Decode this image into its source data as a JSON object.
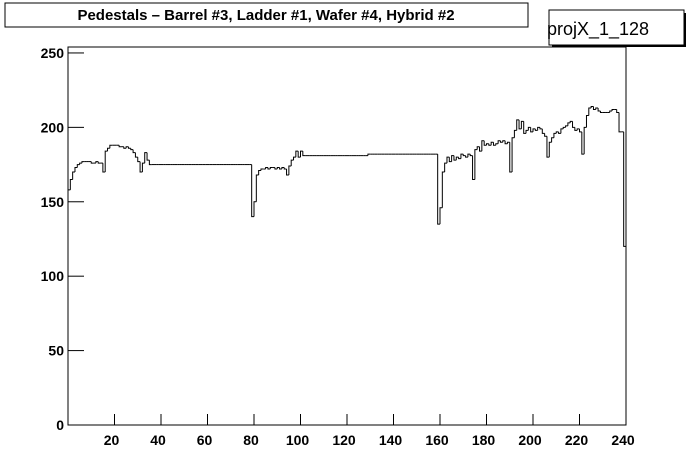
{
  "chart_data": {
    "type": "histogram",
    "title": "Pedestals – Barrel #3, Ladder #1, Wafer #4, Hybrid #2",
    "stats_title": "projX_1_128",
    "color": "#000000",
    "xlim": [
      0,
      240
    ],
    "ylim": [
      0,
      254
    ],
    "xticks": [
      20,
      40,
      60,
      80,
      100,
      120,
      140,
      160,
      180,
      200,
      220,
      240
    ],
    "yticks": [
      0,
      50,
      100,
      150,
      200,
      250
    ],
    "bins": [
      0,
      1,
      2,
      3,
      4,
      5,
      6,
      7,
      8,
      9,
      10,
      11,
      12,
      13,
      14,
      15,
      16,
      17,
      18,
      19,
      20,
      21,
      22,
      23,
      24,
      25,
      26,
      27,
      28,
      29,
      30,
      31,
      32,
      33,
      34,
      35,
      36,
      37,
      38,
      39,
      40,
      41,
      42,
      43,
      44,
      45,
      46,
      47,
      48,
      49,
      50,
      51,
      52,
      53,
      54,
      55,
      56,
      57,
      58,
      59,
      60,
      61,
      62,
      63,
      64,
      65,
      66,
      67,
      68,
      69,
      70,
      71,
      72,
      73,
      74,
      75,
      76,
      77,
      78,
      79,
      80,
      81,
      82,
      83,
      84,
      85,
      86,
      87,
      88,
      89,
      90,
      91,
      92,
      93,
      94,
      95,
      96,
      97,
      98,
      99,
      100,
      101,
      102,
      103,
      104,
      105,
      106,
      107,
      108,
      109,
      110,
      111,
      112,
      113,
      114,
      115,
      116,
      117,
      118,
      119,
      120,
      121,
      122,
      123,
      124,
      125,
      126,
      127,
      128,
      129,
      130,
      131,
      132,
      133,
      134,
      135,
      136,
      137,
      138,
      139,
      140,
      141,
      142,
      143,
      144,
      145,
      146,
      147,
      148,
      149,
      150,
      151,
      152,
      153,
      154,
      155,
      156,
      157,
      158,
      159,
      160,
      161,
      162,
      163,
      164,
      165,
      166,
      167,
      168,
      169,
      170,
      171,
      172,
      173,
      174,
      175,
      176,
      177,
      178,
      179,
      180,
      181,
      182,
      183,
      184,
      185,
      186,
      187,
      188,
      189,
      190,
      191,
      192,
      193,
      194,
      195,
      196,
      197,
      198,
      199,
      200,
      201,
      202,
      203,
      204,
      205,
      206,
      207,
      208,
      209,
      210,
      211,
      212,
      213,
      214,
      215,
      216,
      217,
      218,
      219,
      220,
      221,
      222,
      223,
      224,
      225,
      226,
      227,
      228,
      229,
      230,
      231,
      232,
      233,
      234,
      235,
      236,
      237,
      238,
      239,
      240
    ],
    "values": [
      158,
      165,
      170,
      173,
      175,
      176,
      177,
      177,
      177,
      177,
      176,
      176,
      177,
      176,
      176,
      170,
      184,
      186,
      188,
      188,
      188,
      188,
      187,
      187,
      186,
      187,
      186,
      185,
      183,
      180,
      177,
      170,
      176,
      183,
      178,
      175,
      175,
      175,
      175,
      175,
      175,
      175,
      175,
      175,
      175,
      175,
      175,
      175,
      175,
      175,
      175,
      175,
      175,
      175,
      175,
      175,
      175,
      175,
      175,
      175,
      175,
      175,
      175,
      175,
      175,
      175,
      175,
      175,
      175,
      175,
      175,
      175,
      175,
      175,
      175,
      175,
      175,
      175,
      175,
      140,
      150,
      168,
      171,
      172,
      172,
      173,
      172,
      173,
      173,
      172,
      173,
      172,
      173,
      172,
      168,
      174,
      178,
      180,
      184,
      180,
      184,
      181,
      181,
      181,
      181,
      181,
      181,
      181,
      181,
      181,
      181,
      181,
      181,
      181,
      181,
      181,
      181,
      181,
      181,
      181,
      181,
      181,
      181,
      181,
      181,
      181,
      181,
      181,
      181,
      182,
      182,
      182,
      182,
      182,
      182,
      182,
      182,
      182,
      182,
      182,
      182,
      182,
      182,
      182,
      182,
      182,
      182,
      182,
      182,
      182,
      182,
      182,
      182,
      182,
      182,
      182,
      182,
      182,
      182,
      135,
      146,
      170,
      176,
      180,
      177,
      181,
      178,
      180,
      179,
      182,
      181,
      180,
      182,
      181,
      165,
      185,
      187,
      184,
      191,
      188,
      189,
      188,
      190,
      188,
      189,
      191,
      190,
      191,
      189,
      190,
      170,
      193,
      198,
      205,
      199,
      204,
      196,
      198,
      200,
      197,
      199,
      198,
      200,
      199,
      196,
      194,
      180,
      190,
      193,
      196,
      197,
      196,
      199,
      200,
      201,
      203,
      204,
      200,
      198,
      199,
      197,
      182,
      200,
      208,
      213,
      214,
      212,
      213,
      211,
      210,
      210,
      210,
      210,
      211,
      212,
      212,
      210,
      197,
      197,
      120
    ]
  }
}
